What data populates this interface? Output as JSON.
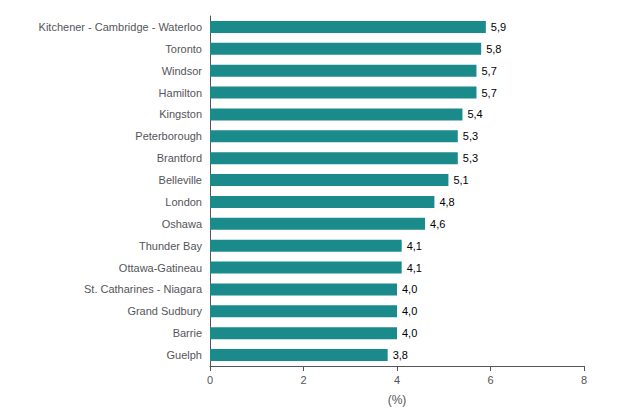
{
  "chart_data": {
    "type": "bar",
    "orientation": "horizontal",
    "categories": [
      "Guelph",
      "Barrie",
      "Grand Sudbury",
      "St. Catharines - Niagara",
      "Ottawa-Gatineau",
      "Thunder Bay",
      "Oshawa",
      "London",
      "Belleville",
      "Brantford",
      "Peterborough",
      "Kingston",
      "Hamilton",
      "Windsor",
      "Toronto",
      "Kitchener - Cambridge - Waterloo"
    ],
    "values": [
      3.8,
      4.0,
      4.0,
      4.0,
      4.1,
      4.1,
      4.6,
      4.8,
      5.1,
      5.3,
      5.3,
      5.4,
      5.7,
      5.7,
      5.8,
      5.9
    ],
    "value_labels": [
      "3,8",
      "4,0",
      "4,0",
      "4,0",
      "4,1",
      "4,1",
      "4,6",
      "4,8",
      "5,1",
      "5,3",
      "5,3",
      "5,4",
      "5,7",
      "5,7",
      "5,8",
      "5,9"
    ],
    "data_labels": true,
    "color": "#1a8a8a",
    "xlabel": "(%)",
    "xlim": [
      0,
      8
    ],
    "xticks": [
      0,
      2,
      4,
      6,
      8
    ],
    "grid": false
  }
}
